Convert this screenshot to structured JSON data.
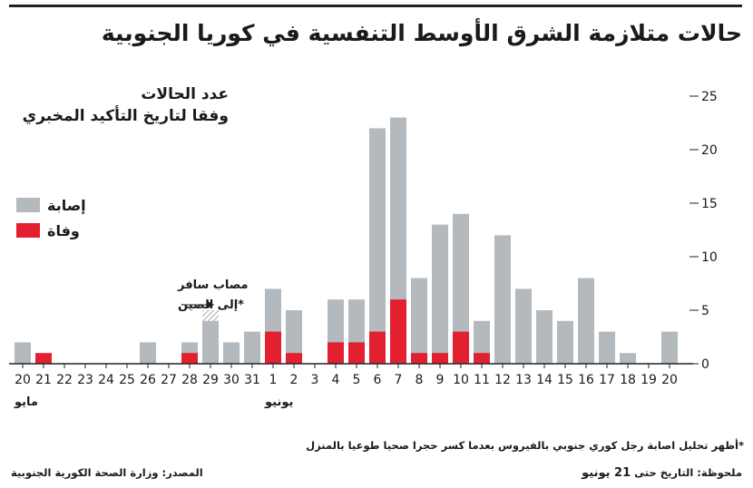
{
  "title": "حالات متلازمة الشرق الأوسط التنفسية في كوريا الجنوبية",
  "subtitle_line1": "عدد الحالات",
  "subtitle_line2": "وفقا لتاريخ التأكيد المخبري",
  "legend": {
    "cases_label": "إصابة",
    "deaths_label": "وفاة"
  },
  "colors": {
    "cases": "#b3b9bd",
    "deaths": "#e2202f",
    "axis": "#222222"
  },
  "annotation": {
    "line1": "مصاب سافر",
    "line2": "*إلى الصين"
  },
  "footnote": "*أظهر تحليل اصابة رجل كوري جنوبي بالفيروس بعدما كسر حجرا صحيا طوعيا بالمنزل",
  "source": "المصدر: وزارة الصحة الكورية الجنوبية",
  "note_prefix": "ملحوظة: التاريخ حتى",
  "note_date": "21 يونيو",
  "chart_data": {
    "type": "bar",
    "categories": [
      "20",
      "21",
      "22",
      "23",
      "24",
      "25",
      "26",
      "27",
      "28",
      "29",
      "30",
      "31",
      "1",
      "2",
      "3",
      "4",
      "5",
      "6",
      "7",
      "8",
      "9",
      "10",
      "11",
      "12",
      "13",
      "14",
      "15",
      "16",
      "17",
      "18",
      "19",
      "20"
    ],
    "month_labels": [
      {
        "label": "مايو",
        "category_index": 0
      },
      {
        "label": "يونيو",
        "category_index": 12
      }
    ],
    "series": [
      {
        "name": "إصابة",
        "values": [
          2,
          0,
          0,
          0,
          0,
          0,
          2,
          0,
          2,
          5,
          2,
          3,
          7,
          5,
          0,
          6,
          6,
          22,
          23,
          8,
          13,
          14,
          4,
          12,
          7,
          5,
          4,
          8,
          3,
          1,
          0,
          3
        ]
      },
      {
        "name": "وفاة",
        "values": [
          0,
          1,
          0,
          0,
          0,
          0,
          0,
          0,
          1,
          0,
          0,
          0,
          3,
          1,
          0,
          2,
          2,
          3,
          6,
          1,
          1,
          3,
          1,
          0,
          0,
          0,
          0,
          0,
          0,
          0,
          0,
          0
        ]
      }
    ],
    "hatched_category_index": 9,
    "hatched_value": 1,
    "ylim": [
      0,
      25
    ],
    "yticks": [
      0,
      5,
      10,
      15,
      20,
      25
    ],
    "ytick_labels": [
      "0",
      "5",
      "10",
      "15",
      "20",
      "25"
    ],
    "grid": false,
    "legend_position": "left"
  }
}
